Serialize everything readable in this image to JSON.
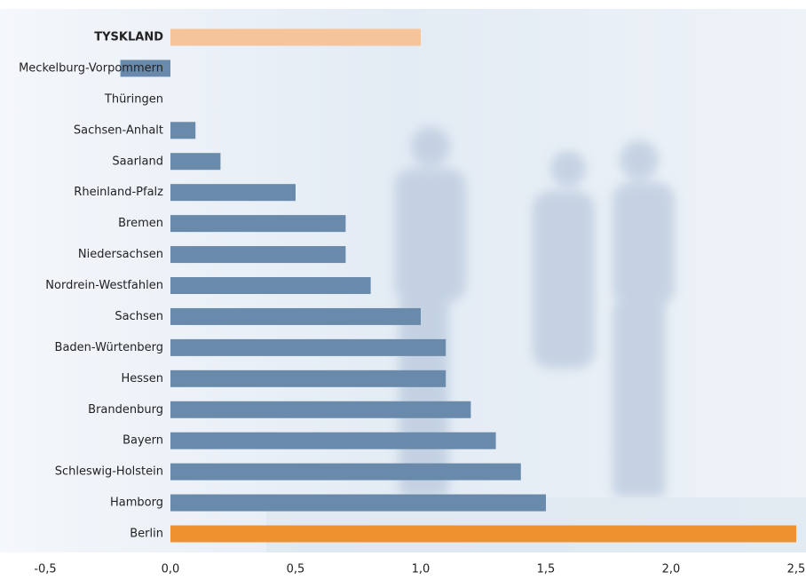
{
  "chart_data": {
    "type": "barh",
    "categories": [
      "TYSKLAND",
      "Meckelburg-Vorpommern",
      "Thüringen",
      "Sachsen-Anhalt",
      "Saarland",
      "Rheinland-Pfalz",
      "Bremen",
      "Niedersachsen",
      "Nordrein-Westfahlen",
      "Sachsen",
      "Baden-Würtenberg",
      "Hessen",
      "Brandenburg",
      "Bayern",
      "Schleswig-Holstein",
      "Hamborg",
      "Berlin"
    ],
    "values": [
      1.0,
      -0.2,
      0,
      0.1,
      0.2,
      0.5,
      0.7,
      0.7,
      0.8,
      1.0,
      1.1,
      1.1,
      1.2,
      1.3,
      1.4,
      1.5,
      2.5
    ],
    "colors": [
      "#f5c49a",
      "#6a8aab",
      "#6a8aab",
      "#6a8aab",
      "#6a8aab",
      "#6a8aab",
      "#6a8aab",
      "#6a8aab",
      "#6a8aab",
      "#6a8aab",
      "#6a8aab",
      "#6a8aab",
      "#6a8aab",
      "#6a8aab",
      "#6a8aab",
      "#6a8aab",
      "#f0912f"
    ],
    "xlim": [
      -0.5,
      2.5
    ],
    "xticks": [
      {
        "value": -0.5,
        "label": "-0,5"
      },
      {
        "value": 0,
        "label": "0,0"
      },
      {
        "value": 0.5,
        "label": "0,5"
      },
      {
        "value": 1,
        "label": "1,0"
      },
      {
        "value": 1.5,
        "label": "1,5"
      },
      {
        "value": 2,
        "label": "2,0"
      },
      {
        "value": 2.5,
        "label": "2,5"
      }
    ],
    "grid": false
  }
}
